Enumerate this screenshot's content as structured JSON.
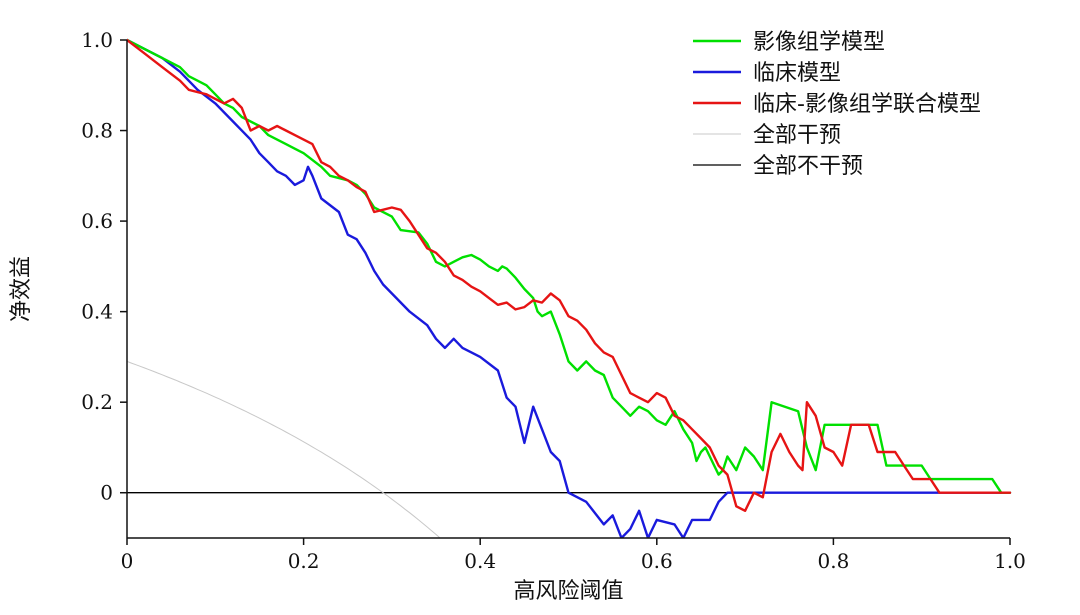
{
  "chart_data": {
    "type": "line",
    "title": "",
    "xlabel": "高风险阈值",
    "ylabel": "净效益",
    "xlim": [
      0,
      1.0
    ],
    "ylim": [
      -0.1,
      1.0
    ],
    "xticks": [
      "0",
      "0.2",
      "0.4",
      "0.6",
      "0.8",
      "1.0"
    ],
    "yticks": [
      "0",
      "0.2",
      "0.4",
      "0.6",
      "0.8",
      "1.0"
    ],
    "grid": false,
    "legend_position": "top-right",
    "series": [
      {
        "name": "影像组学模型",
        "color": "#00e000",
        "points": [
          [
            0,
            1.0
          ],
          [
            0.02,
            0.98
          ],
          [
            0.04,
            0.96
          ],
          [
            0.06,
            0.94
          ],
          [
            0.07,
            0.92
          ],
          [
            0.08,
            0.91
          ],
          [
            0.09,
            0.9
          ],
          [
            0.1,
            0.88
          ],
          [
            0.11,
            0.86
          ],
          [
            0.12,
            0.85
          ],
          [
            0.13,
            0.83
          ],
          [
            0.15,
            0.81
          ],
          [
            0.16,
            0.79
          ],
          [
            0.17,
            0.78
          ],
          [
            0.18,
            0.77
          ],
          [
            0.19,
            0.76
          ],
          [
            0.2,
            0.75
          ],
          [
            0.22,
            0.72
          ],
          [
            0.23,
            0.7
          ],
          [
            0.25,
            0.69
          ],
          [
            0.26,
            0.68
          ],
          [
            0.27,
            0.66
          ],
          [
            0.28,
            0.63
          ],
          [
            0.3,
            0.61
          ],
          [
            0.31,
            0.58
          ],
          [
            0.33,
            0.575
          ],
          [
            0.34,
            0.55
          ],
          [
            0.35,
            0.51
          ],
          [
            0.36,
            0.5
          ],
          [
            0.37,
            0.51
          ],
          [
            0.38,
            0.52
          ],
          [
            0.39,
            0.525
          ],
          [
            0.4,
            0.515
          ],
          [
            0.41,
            0.5
          ],
          [
            0.42,
            0.49
          ],
          [
            0.425,
            0.5
          ],
          [
            0.43,
            0.495
          ],
          [
            0.44,
            0.475
          ],
          [
            0.45,
            0.45
          ],
          [
            0.46,
            0.43
          ],
          [
            0.465,
            0.4
          ],
          [
            0.47,
            0.39
          ],
          [
            0.48,
            0.4
          ],
          [
            0.49,
            0.35
          ],
          [
            0.5,
            0.29
          ],
          [
            0.51,
            0.27
          ],
          [
            0.52,
            0.29
          ],
          [
            0.53,
            0.27
          ],
          [
            0.54,
            0.26
          ],
          [
            0.55,
            0.21
          ],
          [
            0.56,
            0.19
          ],
          [
            0.57,
            0.17
          ],
          [
            0.58,
            0.19
          ],
          [
            0.59,
            0.18
          ],
          [
            0.6,
            0.16
          ],
          [
            0.61,
            0.15
          ],
          [
            0.62,
            0.18
          ],
          [
            0.63,
            0.14
          ],
          [
            0.64,
            0.11
          ],
          [
            0.645,
            0.07
          ],
          [
            0.65,
            0.09
          ],
          [
            0.655,
            0.1
          ],
          [
            0.66,
            0.08
          ],
          [
            0.665,
            0.06
          ],
          [
            0.67,
            0.04
          ],
          [
            0.675,
            0.05
          ],
          [
            0.68,
            0.08
          ],
          [
            0.69,
            0.05
          ],
          [
            0.7,
            0.1
          ],
          [
            0.71,
            0.08
          ],
          [
            0.72,
            0.05
          ],
          [
            0.73,
            0.2
          ],
          [
            0.76,
            0.18
          ],
          [
            0.77,
            0.1
          ],
          [
            0.78,
            0.05
          ],
          [
            0.79,
            0.15
          ],
          [
            0.84,
            0.15
          ],
          [
            0.85,
            0.15
          ],
          [
            0.86,
            0.06
          ],
          [
            0.88,
            0.06
          ],
          [
            0.9,
            0.06
          ],
          [
            0.91,
            0.03
          ],
          [
            0.98,
            0.03
          ],
          [
            0.99,
            0.0
          ],
          [
            1.0,
            0.0
          ]
        ]
      },
      {
        "name": "临床模型",
        "color": "#1a1adc",
        "points": [
          [
            0,
            1.0
          ],
          [
            0.02,
            0.98
          ],
          [
            0.04,
            0.96
          ],
          [
            0.06,
            0.93
          ],
          [
            0.08,
            0.89
          ],
          [
            0.1,
            0.86
          ],
          [
            0.12,
            0.82
          ],
          [
            0.14,
            0.78
          ],
          [
            0.15,
            0.75
          ],
          [
            0.16,
            0.73
          ],
          [
            0.17,
            0.71
          ],
          [
            0.18,
            0.7
          ],
          [
            0.19,
            0.68
          ],
          [
            0.2,
            0.69
          ],
          [
            0.205,
            0.72
          ],
          [
            0.21,
            0.7
          ],
          [
            0.22,
            0.65
          ],
          [
            0.24,
            0.62
          ],
          [
            0.25,
            0.57
          ],
          [
            0.26,
            0.56
          ],
          [
            0.27,
            0.53
          ],
          [
            0.28,
            0.49
          ],
          [
            0.29,
            0.46
          ],
          [
            0.3,
            0.44
          ],
          [
            0.32,
            0.4
          ],
          [
            0.34,
            0.37
          ],
          [
            0.35,
            0.34
          ],
          [
            0.36,
            0.32
          ],
          [
            0.37,
            0.34
          ],
          [
            0.38,
            0.32
          ],
          [
            0.39,
            0.31
          ],
          [
            0.4,
            0.3
          ],
          [
            0.42,
            0.27
          ],
          [
            0.43,
            0.21
          ],
          [
            0.44,
            0.19
          ],
          [
            0.45,
            0.11
          ],
          [
            0.46,
            0.19
          ],
          [
            0.47,
            0.14
          ],
          [
            0.48,
            0.09
          ],
          [
            0.49,
            0.07
          ],
          [
            0.5,
            0.0
          ],
          [
            0.52,
            -0.02
          ],
          [
            0.54,
            -0.07
          ],
          [
            0.55,
            -0.05
          ],
          [
            0.56,
            -0.1
          ],
          [
            0.57,
            -0.08
          ],
          [
            0.58,
            -0.04
          ],
          [
            0.59,
            -0.1
          ],
          [
            0.6,
            -0.06
          ],
          [
            0.62,
            -0.07
          ],
          [
            0.63,
            -0.1
          ],
          [
            0.64,
            -0.06
          ],
          [
            0.66,
            -0.06
          ],
          [
            0.67,
            -0.02
          ],
          [
            0.68,
            0.0
          ],
          [
            0.7,
            0.0
          ],
          [
            1.0,
            0.0
          ]
        ]
      },
      {
        "name": "临床-影像组学联合模型",
        "color": "#e61414",
        "points": [
          [
            0,
            1.0
          ],
          [
            0.02,
            0.97
          ],
          [
            0.04,
            0.94
          ],
          [
            0.06,
            0.91
          ],
          [
            0.07,
            0.89
          ],
          [
            0.08,
            0.885
          ],
          [
            0.09,
            0.88
          ],
          [
            0.1,
            0.87
          ],
          [
            0.11,
            0.86
          ],
          [
            0.12,
            0.87
          ],
          [
            0.13,
            0.85
          ],
          [
            0.14,
            0.8
          ],
          [
            0.15,
            0.81
          ],
          [
            0.16,
            0.8
          ],
          [
            0.17,
            0.81
          ],
          [
            0.18,
            0.8
          ],
          [
            0.19,
            0.79
          ],
          [
            0.2,
            0.78
          ],
          [
            0.21,
            0.77
          ],
          [
            0.22,
            0.73
          ],
          [
            0.23,
            0.72
          ],
          [
            0.24,
            0.7
          ],
          [
            0.25,
            0.69
          ],
          [
            0.26,
            0.675
          ],
          [
            0.27,
            0.665
          ],
          [
            0.28,
            0.62
          ],
          [
            0.3,
            0.63
          ],
          [
            0.31,
            0.625
          ],
          [
            0.32,
            0.6
          ],
          [
            0.33,
            0.57
          ],
          [
            0.34,
            0.54
          ],
          [
            0.35,
            0.53
          ],
          [
            0.36,
            0.51
          ],
          [
            0.37,
            0.48
          ],
          [
            0.38,
            0.47
          ],
          [
            0.39,
            0.455
          ],
          [
            0.4,
            0.445
          ],
          [
            0.41,
            0.43
          ],
          [
            0.42,
            0.415
          ],
          [
            0.43,
            0.42
          ],
          [
            0.44,
            0.405
          ],
          [
            0.45,
            0.41
          ],
          [
            0.46,
            0.425
          ],
          [
            0.47,
            0.42
          ],
          [
            0.48,
            0.44
          ],
          [
            0.49,
            0.425
          ],
          [
            0.5,
            0.39
          ],
          [
            0.51,
            0.38
          ],
          [
            0.52,
            0.36
          ],
          [
            0.53,
            0.33
          ],
          [
            0.54,
            0.31
          ],
          [
            0.55,
            0.3
          ],
          [
            0.56,
            0.26
          ],
          [
            0.57,
            0.22
          ],
          [
            0.58,
            0.21
          ],
          [
            0.59,
            0.2
          ],
          [
            0.6,
            0.22
          ],
          [
            0.61,
            0.21
          ],
          [
            0.62,
            0.17
          ],
          [
            0.63,
            0.16
          ],
          [
            0.64,
            0.14
          ],
          [
            0.65,
            0.12
          ],
          [
            0.66,
            0.1
          ],
          [
            0.67,
            0.06
          ],
          [
            0.68,
            0.04
          ],
          [
            0.69,
            -0.03
          ],
          [
            0.7,
            -0.04
          ],
          [
            0.71,
            0.0
          ],
          [
            0.72,
            -0.01
          ],
          [
            0.73,
            0.09
          ],
          [
            0.74,
            0.13
          ],
          [
            0.75,
            0.09
          ],
          [
            0.76,
            0.06
          ],
          [
            0.765,
            0.05
          ],
          [
            0.77,
            0.2
          ],
          [
            0.78,
            0.17
          ],
          [
            0.79,
            0.1
          ],
          [
            0.8,
            0.09
          ],
          [
            0.81,
            0.06
          ],
          [
            0.82,
            0.15
          ],
          [
            0.84,
            0.15
          ],
          [
            0.85,
            0.09
          ],
          [
            0.86,
            0.09
          ],
          [
            0.87,
            0.09
          ],
          [
            0.88,
            0.06
          ],
          [
            0.89,
            0.03
          ],
          [
            0.91,
            0.03
          ],
          [
            0.92,
            0.0
          ],
          [
            1.0,
            0.0
          ]
        ]
      },
      {
        "name": "全部干预",
        "color": "#c8c8c8",
        "prevalence": 0.29
      },
      {
        "name": "全部不干预",
        "color": "#000000",
        "points": [
          [
            0,
            0
          ],
          [
            1.0,
            0
          ]
        ]
      }
    ]
  }
}
